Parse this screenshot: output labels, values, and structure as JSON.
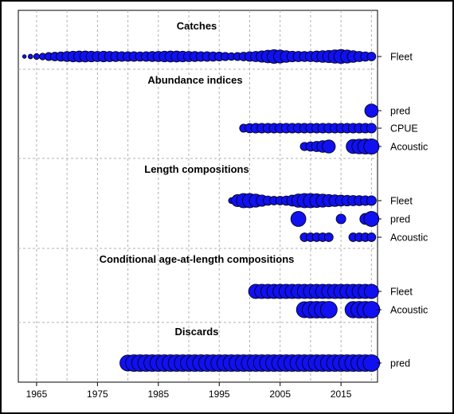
{
  "chart_data": {
    "type": "scatter",
    "x_ticks": [
      1965,
      1975,
      1985,
      1995,
      2005,
      2015
    ],
    "xlim": [
      1962,
      2021
    ],
    "grid": true,
    "colors": {
      "bubble": "#1010f0",
      "grid": "#b0b0b0"
    },
    "sections": [
      {
        "title": "Catches",
        "rows": [
          {
            "label": "Fleet",
            "points": [
              [
                1963,
                0.22
              ],
              [
                1964,
                0.28
              ],
              [
                1965,
                0.35
              ],
              [
                1966,
                0.4
              ],
              [
                1967,
                0.48
              ],
              [
                1968,
                0.52
              ],
              [
                1969,
                0.56
              ],
              [
                1970,
                0.6
              ],
              [
                1971,
                0.64
              ],
              [
                1972,
                0.66
              ],
              [
                1973,
                0.66
              ],
              [
                1974,
                0.64
              ],
              [
                1975,
                0.62
              ],
              [
                1976,
                0.64
              ],
              [
                1977,
                0.62
              ],
              [
                1978,
                0.6
              ],
              [
                1979,
                0.58
              ],
              [
                1980,
                0.58
              ],
              [
                1981,
                0.58
              ],
              [
                1982,
                0.56
              ],
              [
                1983,
                0.58
              ],
              [
                1984,
                0.6
              ],
              [
                1985,
                0.62
              ],
              [
                1986,
                0.64
              ],
              [
                1987,
                0.66
              ],
              [
                1988,
                0.66
              ],
              [
                1989,
                0.64
              ],
              [
                1990,
                0.62
              ],
              [
                1991,
                0.6
              ],
              [
                1992,
                0.58
              ],
              [
                1993,
                0.58
              ],
              [
                1994,
                0.56
              ],
              [
                1995,
                0.54
              ],
              [
                1996,
                0.5
              ],
              [
                1997,
                0.46
              ],
              [
                1998,
                0.48
              ],
              [
                1999,
                0.52
              ],
              [
                2000,
                0.58
              ],
              [
                2001,
                0.62
              ],
              [
                2002,
                0.68
              ],
              [
                2003,
                0.76
              ],
              [
                2004,
                0.82
              ],
              [
                2005,
                0.78
              ],
              [
                2006,
                0.7
              ],
              [
                2007,
                0.64
              ],
              [
                2008,
                0.62
              ],
              [
                2009,
                0.6
              ],
              [
                2010,
                0.62
              ],
              [
                2011,
                0.66
              ],
              [
                2012,
                0.7
              ],
              [
                2013,
                0.74
              ],
              [
                2014,
                0.8
              ],
              [
                2015,
                0.84
              ],
              [
                2016,
                0.78
              ],
              [
                2017,
                0.7
              ],
              [
                2018,
                0.62
              ],
              [
                2019,
                0.56
              ],
              [
                2020,
                0.52
              ]
            ]
          }
        ]
      },
      {
        "title": "Abundance indices",
        "rows": [
          {
            "label": "pred",
            "points": [
              [
                2020,
                0.8
              ]
            ]
          },
          {
            "label": "CPUE",
            "points": [
              [
                1999,
                0.48
              ],
              [
                2000,
                0.56
              ],
              [
                2001,
                0.58
              ],
              [
                2002,
                0.58
              ],
              [
                2003,
                0.58
              ],
              [
                2004,
                0.58
              ],
              [
                2005,
                0.58
              ],
              [
                2006,
                0.58
              ],
              [
                2007,
                0.58
              ],
              [
                2008,
                0.58
              ],
              [
                2009,
                0.58
              ],
              [
                2010,
                0.58
              ],
              [
                2011,
                0.58
              ],
              [
                2012,
                0.58
              ],
              [
                2013,
                0.58
              ],
              [
                2014,
                0.58
              ],
              [
                2015,
                0.58
              ],
              [
                2016,
                0.58
              ],
              [
                2017,
                0.58
              ],
              [
                2018,
                0.58
              ],
              [
                2019,
                0.58
              ],
              [
                2020,
                0.58
              ]
            ]
          },
          {
            "label": "Acoustic",
            "points": [
              [
                2009,
                0.5
              ],
              [
                2010,
                0.56
              ],
              [
                2011,
                0.62
              ],
              [
                2012,
                0.7
              ],
              [
                2013,
                0.78
              ],
              [
                2017,
                0.84
              ],
              [
                2018,
                0.88
              ],
              [
                2019,
                0.9
              ],
              [
                2020,
                0.92
              ]
            ]
          }
        ]
      },
      {
        "title": "Length compositions",
        "rows": [
          {
            "label": "Fleet",
            "points": [
              [
                1997,
                0.35
              ],
              [
                1998,
                0.72
              ],
              [
                1999,
                0.86
              ],
              [
                2000,
                0.86
              ],
              [
                2001,
                0.78
              ],
              [
                2002,
                0.68
              ],
              [
                2003,
                0.56
              ],
              [
                2004,
                0.52
              ],
              [
                2005,
                0.52
              ],
              [
                2006,
                0.56
              ],
              [
                2007,
                0.66
              ],
              [
                2008,
                0.8
              ],
              [
                2009,
                0.86
              ],
              [
                2010,
                0.86
              ],
              [
                2011,
                0.82
              ],
              [
                2012,
                0.78
              ],
              [
                2013,
                0.74
              ],
              [
                2014,
                0.7
              ],
              [
                2015,
                0.66
              ],
              [
                2016,
                0.64
              ],
              [
                2017,
                0.62
              ],
              [
                2018,
                0.6
              ],
              [
                2019,
                0.58
              ],
              [
                2020,
                0.58
              ]
            ]
          },
          {
            "label": "pred",
            "points": [
              [
                2008,
                0.9
              ],
              [
                2015,
                0.58
              ],
              [
                2019,
                0.66
              ],
              [
                2020,
                0.9
              ]
            ]
          },
          {
            "label": "Acoustic",
            "points": [
              [
                2009,
                0.52
              ],
              [
                2010,
                0.52
              ],
              [
                2011,
                0.52
              ],
              [
                2012,
                0.52
              ],
              [
                2013,
                0.52
              ],
              [
                2017,
                0.52
              ],
              [
                2018,
                0.52
              ],
              [
                2019,
                0.52
              ],
              [
                2020,
                0.52
              ]
            ]
          }
        ]
      },
      {
        "title": "Conditional age-at-length compositions",
        "rows": [
          {
            "label": "Fleet",
            "points": [
              [
                2001,
                0.86
              ],
              [
                2002,
                0.86
              ],
              [
                2003,
                0.86
              ],
              [
                2004,
                0.86
              ],
              [
                2005,
                0.86
              ],
              [
                2006,
                0.86
              ],
              [
                2007,
                0.86
              ],
              [
                2008,
                0.86
              ],
              [
                2009,
                0.86
              ],
              [
                2010,
                0.86
              ],
              [
                2011,
                0.86
              ],
              [
                2012,
                0.86
              ],
              [
                2013,
                0.86
              ],
              [
                2014,
                0.86
              ],
              [
                2015,
                0.86
              ],
              [
                2016,
                0.86
              ],
              [
                2017,
                0.86
              ],
              [
                2018,
                0.86
              ],
              [
                2019,
                0.86
              ],
              [
                2020,
                0.86
              ]
            ]
          },
          {
            "label": "Acoustic",
            "points": [
              [
                2009,
                0.96
              ],
              [
                2010,
                1.0
              ],
              [
                2011,
                1.0
              ],
              [
                2012,
                1.0
              ],
              [
                2013,
                1.0
              ],
              [
                2017,
                0.98
              ],
              [
                2018,
                1.0
              ],
              [
                2019,
                1.0
              ],
              [
                2020,
                1.0
              ]
            ]
          }
        ]
      },
      {
        "title": "Discards",
        "rows": [
          {
            "label": "pred",
            "points": [
              [
                1980,
                0.96
              ],
              [
                1981,
                1.0
              ],
              [
                1982,
                1.0
              ],
              [
                1983,
                1.0
              ],
              [
                1984,
                1.0
              ],
              [
                1985,
                1.0
              ],
              [
                1986,
                1.0
              ],
              [
                1987,
                1.0
              ],
              [
                1988,
                1.0
              ],
              [
                1989,
                1.0
              ],
              [
                1990,
                1.0
              ],
              [
                1991,
                1.0
              ],
              [
                1992,
                1.0
              ],
              [
                1993,
                1.0
              ],
              [
                1994,
                1.0
              ],
              [
                1995,
                1.0
              ],
              [
                1996,
                1.0
              ],
              [
                1997,
                1.0
              ],
              [
                1998,
                1.0
              ],
              [
                1999,
                1.0
              ],
              [
                2000,
                1.0
              ],
              [
                2001,
                1.0
              ],
              [
                2002,
                1.0
              ],
              [
                2003,
                1.0
              ],
              [
                2004,
                1.0
              ],
              [
                2005,
                1.0
              ],
              [
                2006,
                1.0
              ],
              [
                2007,
                1.0
              ],
              [
                2008,
                1.0
              ],
              [
                2009,
                1.0
              ],
              [
                2010,
                1.0
              ],
              [
                2011,
                1.0
              ],
              [
                2012,
                1.0
              ],
              [
                2013,
                1.0
              ],
              [
                2014,
                1.0
              ],
              [
                2015,
                1.0
              ],
              [
                2016,
                1.0
              ],
              [
                2017,
                1.0
              ],
              [
                2018,
                1.0
              ],
              [
                2019,
                1.0
              ],
              [
                2020,
                1.0
              ]
            ]
          }
        ]
      }
    ]
  }
}
